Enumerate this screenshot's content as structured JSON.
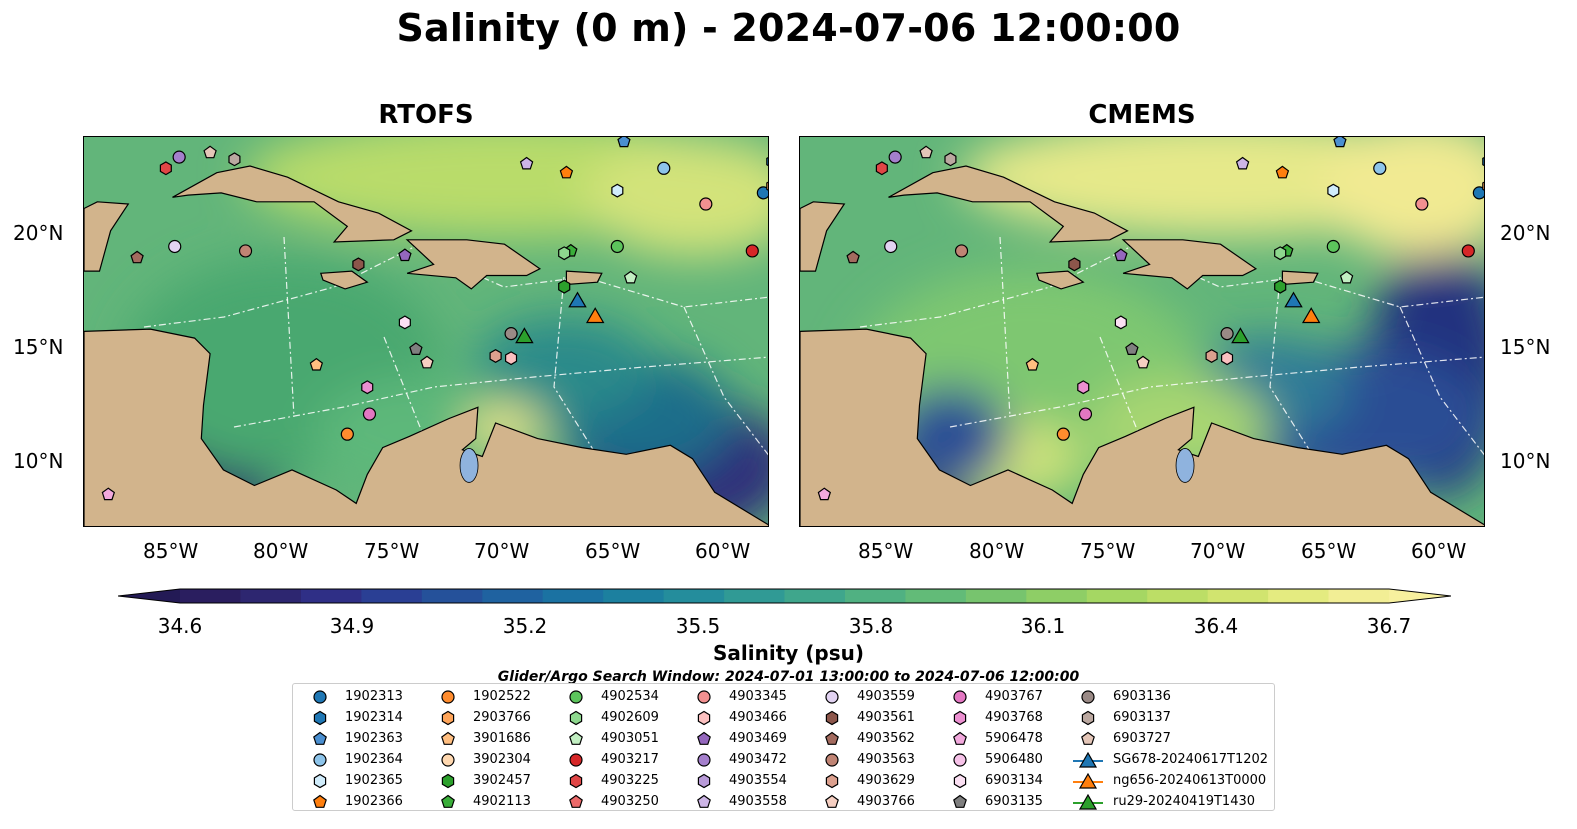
{
  "figure": {
    "title": "Salinity (0 m) - 2024-07-06 12:00:00",
    "panels": [
      {
        "title": "RTOFS"
      },
      {
        "title": "CMEMS"
      }
    ],
    "lon_ticks": [
      "85°W",
      "80°W",
      "75°W",
      "70°W",
      "65°W",
      "60°W"
    ],
    "lat_ticks": [
      "20°N",
      "15°N",
      "10°N"
    ],
    "extent": {
      "lon": [
        -89,
        -58
      ],
      "lat": [
        7,
        24.5
      ]
    },
    "colorbar": {
      "label": "Salinity (psu)",
      "ticks": [
        "34.6",
        "34.9",
        "35.2",
        "35.5",
        "35.8",
        "36.1",
        "36.4",
        "36.7"
      ],
      "range": [
        34.6,
        36.7
      ],
      "colormap": "haline"
    },
    "search_window": "Glider/Argo Search Window: 2024-07-01 13:00:00 to 2024-07-06 12:00:00",
    "colors": {
      "land": "#d2b48c",
      "lake": "#8fb3de",
      "river": "#9bb7d4"
    }
  },
  "legend": {
    "items": [
      {
        "label": "1902313",
        "marker": "circle",
        "color": "#1f77b4"
      },
      {
        "label": "1902314",
        "marker": "hexagon",
        "color": "#1f77b4"
      },
      {
        "label": "1902363",
        "marker": "pentagon",
        "color": "#4a8fd0"
      },
      {
        "label": "1902364",
        "marker": "circle",
        "color": "#8dc4ea"
      },
      {
        "label": "1902365",
        "marker": "hexagon",
        "color": "#d0ecfb"
      },
      {
        "label": "1902366",
        "marker": "pentagon",
        "color": "#ff7f0e"
      },
      {
        "label": "1902522",
        "marker": "circle",
        "color": "#ff8c2e"
      },
      {
        "label": "2903766",
        "marker": "hexagon",
        "color": "#ffa55a"
      },
      {
        "label": "3901686",
        "marker": "pentagon",
        "color": "#ffbe80"
      },
      {
        "label": "3902304",
        "marker": "circle",
        "color": "#ffd8b0"
      },
      {
        "label": "3902457",
        "marker": "hexagon",
        "color": "#2ca02c"
      },
      {
        "label": "4902113",
        "marker": "pentagon",
        "color": "#3aae3a"
      },
      {
        "label": "4902534",
        "marker": "circle",
        "color": "#5cc45c"
      },
      {
        "label": "4902609",
        "marker": "hexagon",
        "color": "#8ed88e"
      },
      {
        "label": "4903051",
        "marker": "pentagon",
        "color": "#c2efc2"
      },
      {
        "label": "4903217",
        "marker": "circle",
        "color": "#d62728"
      },
      {
        "label": "4903225",
        "marker": "hexagon",
        "color": "#e04646"
      },
      {
        "label": "4903250",
        "marker": "pentagon",
        "color": "#ec6a6a"
      },
      {
        "label": "4903345",
        "marker": "circle",
        "color": "#f29090"
      },
      {
        "label": "4903466",
        "marker": "hexagon",
        "color": "#fbc0c0"
      },
      {
        "label": "4903469",
        "marker": "pentagon",
        "color": "#9467bd"
      },
      {
        "label": "4903472",
        "marker": "circle",
        "color": "#a47fcc"
      },
      {
        "label": "4903554",
        "marker": "hexagon",
        "color": "#b89ad8"
      },
      {
        "label": "4903558",
        "marker": "pentagon",
        "color": "#cdb5e6"
      },
      {
        "label": "4903559",
        "marker": "circle",
        "color": "#e2d3f2"
      },
      {
        "label": "4903561",
        "marker": "hexagon",
        "color": "#8c564b"
      },
      {
        "label": "4903562",
        "marker": "pentagon",
        "color": "#a36b5f"
      },
      {
        "label": "4903563",
        "marker": "circle",
        "color": "#c08474"
      },
      {
        "label": "4903629",
        "marker": "hexagon",
        "color": "#dca08e"
      },
      {
        "label": "4903766",
        "marker": "pentagon",
        "color": "#f6cfc2"
      },
      {
        "label": "4903767",
        "marker": "circle",
        "color": "#e377c2"
      },
      {
        "label": "4903768",
        "marker": "hexagon",
        "color": "#eb8fd0"
      },
      {
        "label": "5906478",
        "marker": "pentagon",
        "color": "#f2a9dd"
      },
      {
        "label": "5906480",
        "marker": "circle",
        "color": "#f6c2e8"
      },
      {
        "label": "6903134",
        "marker": "hexagon",
        "color": "#fbe0f3"
      },
      {
        "label": "6903135",
        "marker": "pentagon",
        "color": "#7f7f7f"
      },
      {
        "label": "6903136",
        "marker": "circle",
        "color": "#9a8a86"
      },
      {
        "label": "6903137",
        "marker": "hexagon",
        "color": "#bba8a0"
      },
      {
        "label": "6903727",
        "marker": "pentagon",
        "color": "#e4c6b8"
      },
      {
        "label": "SG678-20240617T1202",
        "marker": "triangle",
        "color": "#1f77b4"
      },
      {
        "label": "ng656-20240613T0000",
        "marker": "triangle",
        "color": "#ff7f0e"
      },
      {
        "label": "ru29-20240419T1430",
        "marker": "triangle",
        "color": "#2ca02c"
      }
    ]
  },
  "floats": [
    {
      "id": "1902313",
      "lon": -58.3,
      "lat": 22.0
    },
    {
      "id": "1902314",
      "lon": -57.9,
      "lat": 23.4
    },
    {
      "id": "1902363",
      "lon": -64.6,
      "lat": 24.3
    },
    {
      "id": "1902364",
      "lon": -62.8,
      "lat": 23.1
    },
    {
      "id": "1902365",
      "lon": -64.9,
      "lat": 22.1
    },
    {
      "id": "1902366",
      "lon": -67.2,
      "lat": 22.9
    },
    {
      "id": "1902522",
      "lon": -77.1,
      "lat": 11.2
    },
    {
      "id": "2903766",
      "lon": -57.9,
      "lat": 22.3
    },
    {
      "id": "3901686",
      "lon": -78.5,
      "lat": 14.3
    },
    {
      "id": "3902457",
      "lon": -67.3,
      "lat": 17.8
    },
    {
      "id": "4902113",
      "lon": -67.0,
      "lat": 19.4
    },
    {
      "id": "4902534",
      "lon": -64.9,
      "lat": 19.6
    },
    {
      "id": "4902609",
      "lon": -67.3,
      "lat": 19.3
    },
    {
      "id": "4903051",
      "lon": -64.3,
      "lat": 18.2
    },
    {
      "id": "4903217",
      "lon": -58.8,
      "lat": 19.4
    },
    {
      "id": "4903225",
      "lon": -85.3,
      "lat": 23.1
    },
    {
      "id": "4903345",
      "lon": -60.9,
      "lat": 21.5
    },
    {
      "id": "4903466",
      "lon": -69.7,
      "lat": 14.6
    },
    {
      "id": "4903469",
      "lon": -74.5,
      "lat": 19.2
    },
    {
      "id": "4903558",
      "lon": -69.0,
      "lat": 23.3
    },
    {
      "id": "4903559",
      "lon": -84.9,
      "lat": 19.6
    },
    {
      "id": "4903561",
      "lon": -76.6,
      "lat": 18.8
    },
    {
      "id": "4903562",
      "lon": -86.6,
      "lat": 19.1
    },
    {
      "id": "4903563",
      "lon": -81.7,
      "lat": 19.4
    },
    {
      "id": "4903629",
      "lon": -70.4,
      "lat": 14.7
    },
    {
      "id": "4903766",
      "lon": -73.5,
      "lat": 14.4
    },
    {
      "id": "4903767",
      "lon": -76.1,
      "lat": 12.1
    },
    {
      "id": "4903768",
      "lon": -76.2,
      "lat": 13.3
    },
    {
      "id": "5906478",
      "lon": -87.9,
      "lat": 8.5
    },
    {
      "id": "6903134",
      "lon": -74.5,
      "lat": 16.2
    },
    {
      "id": "6903135",
      "lon": -74.0,
      "lat": 15.0
    },
    {
      "id": "6903136",
      "lon": -69.7,
      "lat": 15.7
    },
    {
      "id": "6903137",
      "lon": -82.2,
      "lat": 23.5
    },
    {
      "id": "6903727",
      "lon": -83.3,
      "lat": 23.8
    },
    {
      "id": "4903472",
      "lon": -84.7,
      "lat": 23.6
    }
  ],
  "gliders": [
    {
      "id": "SG678-20240617T1202",
      "lon": -66.7,
      "lat": 17.2
    },
    {
      "id": "ng656-20240613T0000",
      "lon": -65.9,
      "lat": 16.5
    },
    {
      "id": "ru29-20240419T1430",
      "lon": -69.1,
      "lat": 15.6
    }
  ]
}
